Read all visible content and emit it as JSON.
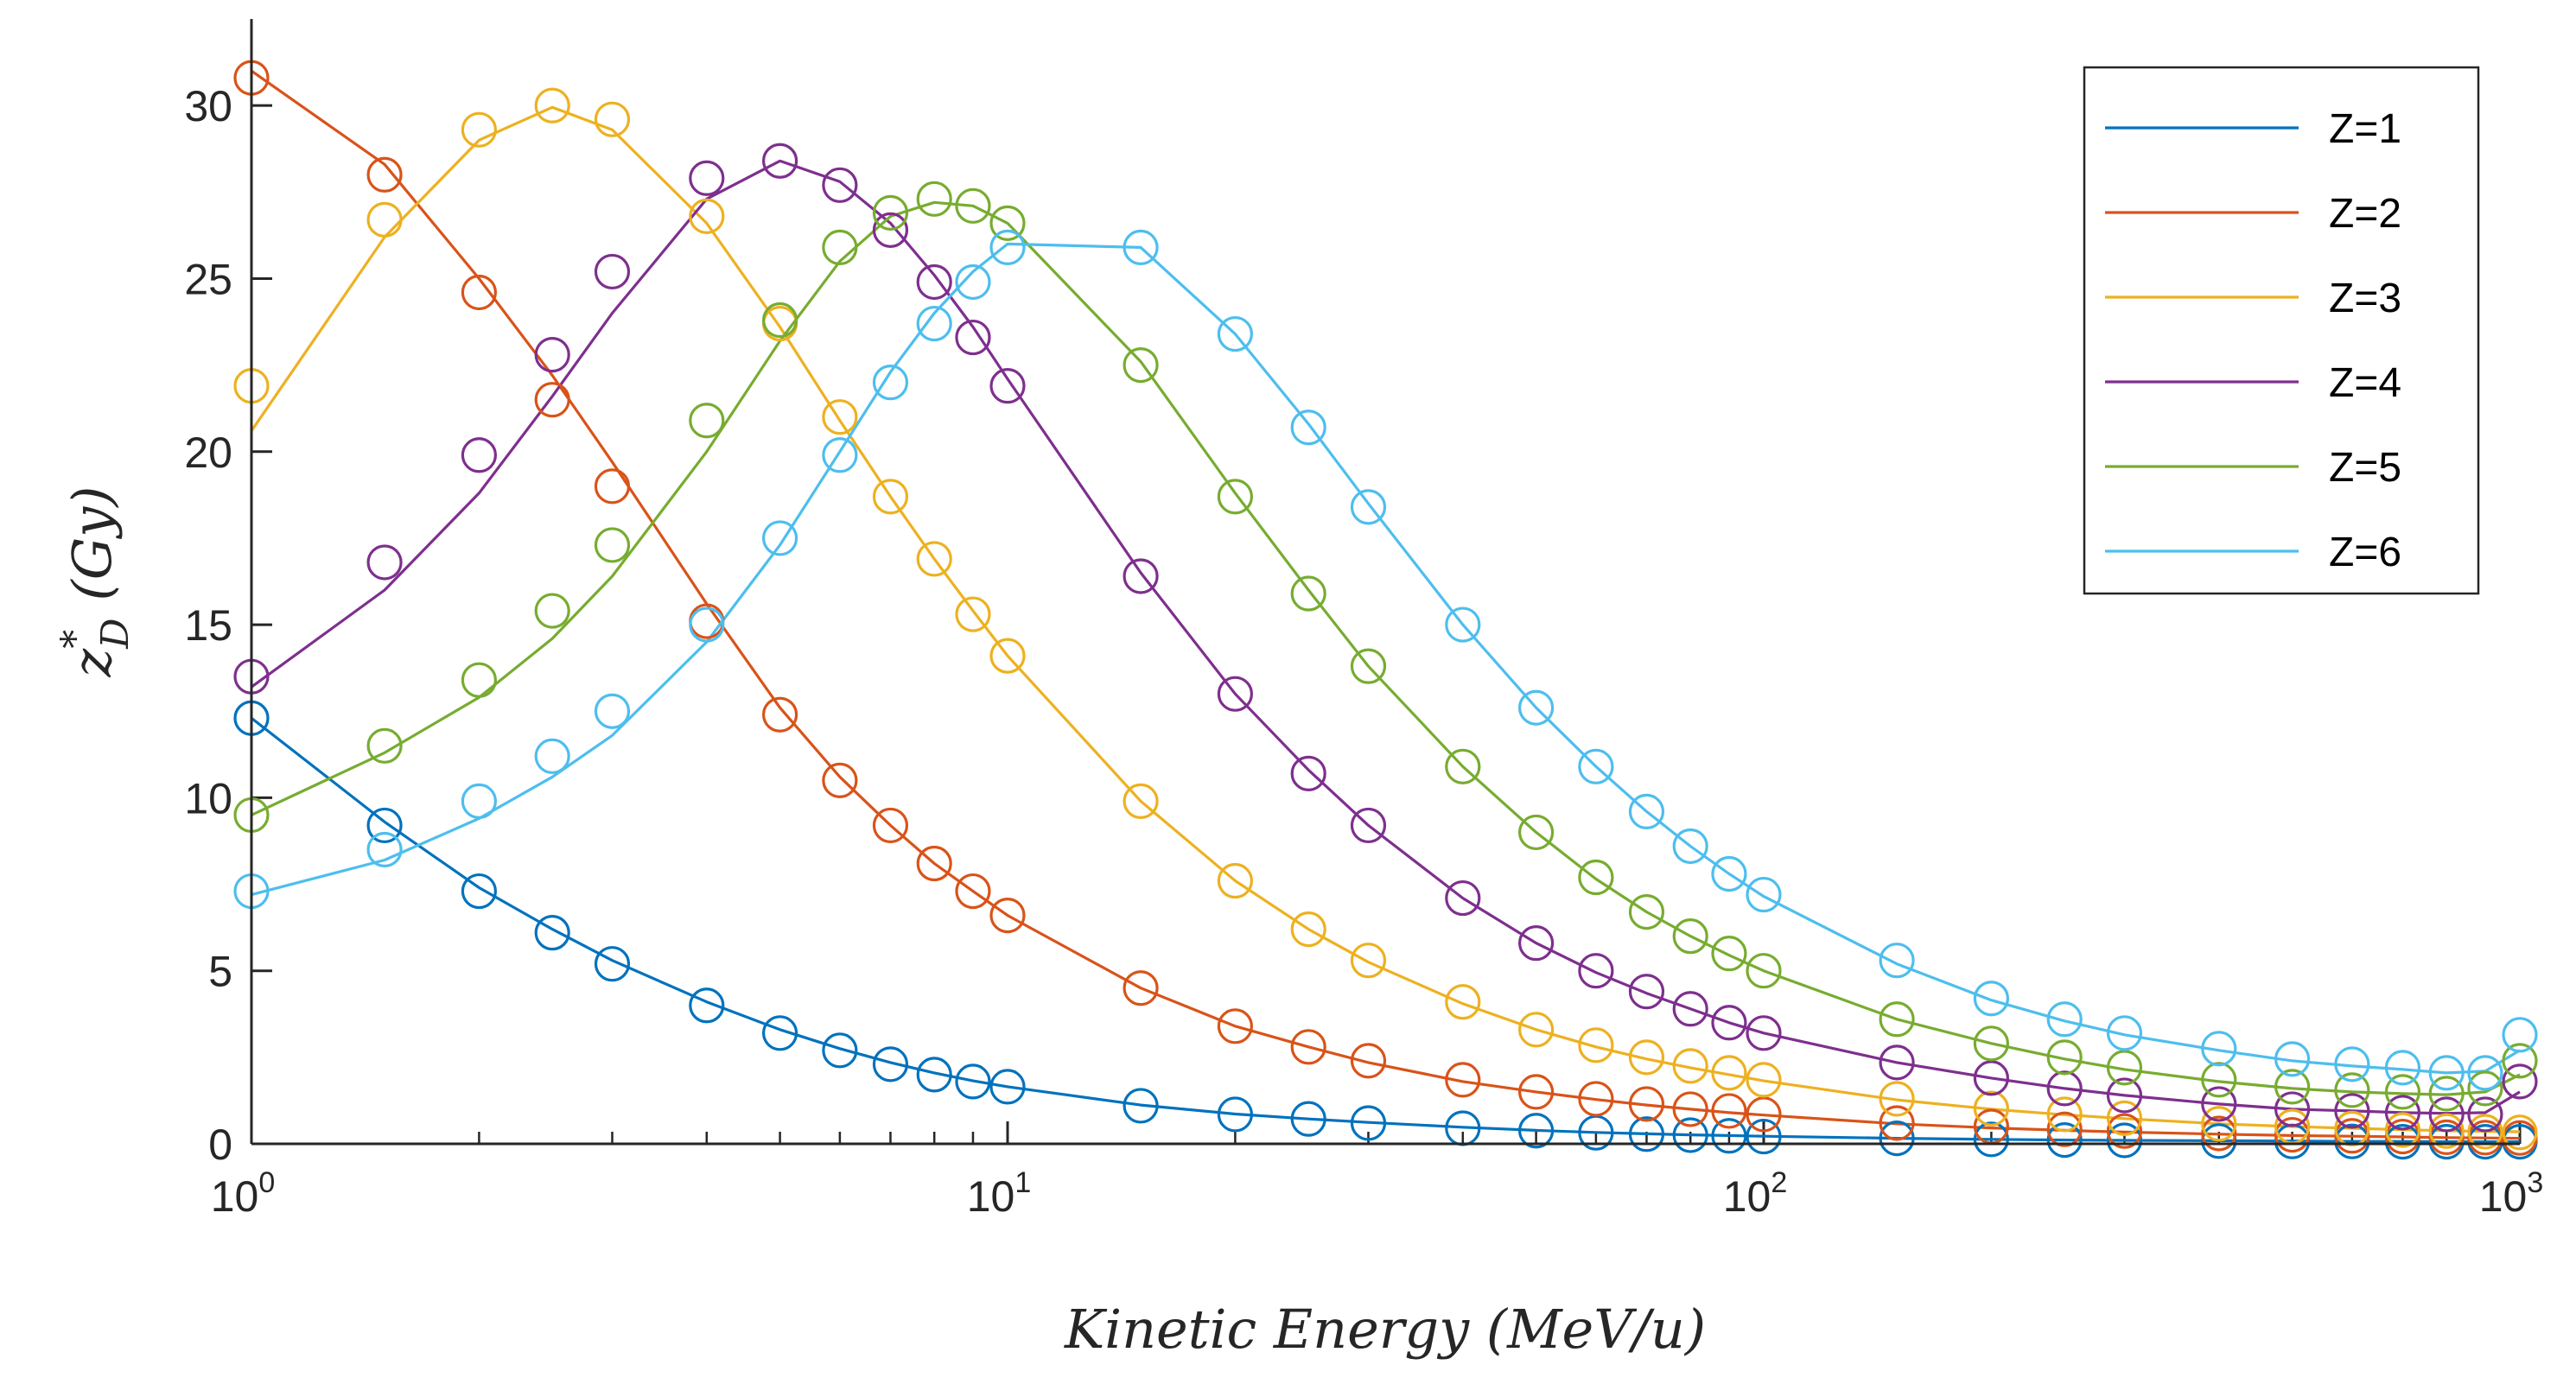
{
  "chart_data": {
    "type": "line",
    "title": "",
    "xlabel": "Kinetic Energy (MeV/u)",
    "xlabel_parts": {
      "name": "Kinetic Energy",
      "unit": "(MeV/u)"
    },
    "ylabel": "z*_D (Gy)",
    "ylabel_parts": {
      "sym": "z",
      "sup": "*",
      "sub": "D",
      "unit": "(Gy)"
    },
    "xscale": "log",
    "xlim": [
      1,
      1000
    ],
    "ylim": [
      0,
      32.5
    ],
    "x_ticks": [
      {
        "value": 1,
        "base": "10",
        "exp": "0"
      },
      {
        "value": 10,
        "base": "10",
        "exp": "1"
      },
      {
        "value": 100,
        "base": "10",
        "exp": "2"
      },
      {
        "value": 1000,
        "base": "10",
        "exp": "3"
      }
    ],
    "y_ticks": [
      {
        "value": 0,
        "label": "0"
      },
      {
        "value": 5,
        "label": "5"
      },
      {
        "value": 10,
        "label": "10"
      },
      {
        "value": 15,
        "label": "15"
      },
      {
        "value": 20,
        "label": "20"
      },
      {
        "value": 25,
        "label": "25"
      },
      {
        "value": 30,
        "label": "30"
      }
    ],
    "legend_position": "top-right",
    "x": [
      1,
      1.5,
      2,
      2.5,
      3,
      4,
      5,
      6,
      7,
      8,
      9,
      10,
      15,
      20,
      25,
      30,
      40,
      50,
      60,
      70,
      80,
      90,
      100,
      150,
      200,
      250,
      300,
      400,
      500,
      600,
      700,
      800,
      900,
      1000
    ],
    "series": [
      {
        "name": "Z=1",
        "color": "#0072BD",
        "values": [
          12.3,
          9.2,
          7.3,
          6.1,
          5.2,
          4.0,
          3.2,
          2.7,
          2.3,
          2.0,
          1.8,
          1.65,
          1.1,
          0.85,
          0.72,
          0.6,
          0.45,
          0.38,
          0.32,
          0.28,
          0.25,
          0.23,
          0.21,
          0.16,
          0.13,
          0.11,
          0.1,
          0.08,
          0.07,
          0.07,
          0.06,
          0.06,
          0.06,
          0.06
        ],
        "curve": [
          12.3,
          9.3,
          7.4,
          6.2,
          5.3,
          4.1,
          3.3,
          2.75,
          2.35,
          2.05,
          1.82,
          1.65,
          1.12,
          0.86,
          0.72,
          0.62,
          0.48,
          0.39,
          0.33,
          0.29,
          0.26,
          0.24,
          0.22,
          0.16,
          0.13,
          0.11,
          0.1,
          0.09,
          0.08,
          0.07,
          0.07,
          0.06,
          0.06,
          0.06
        ]
      },
      {
        "name": "Z=2",
        "color": "#D95319",
        "values": [
          30.8,
          28.0,
          24.6,
          21.5,
          19.0,
          15.1,
          12.4,
          10.5,
          9.2,
          8.1,
          7.3,
          6.6,
          4.5,
          3.4,
          2.8,
          2.4,
          1.85,
          1.5,
          1.3,
          1.15,
          1.0,
          0.95,
          0.85,
          0.6,
          0.5,
          0.42,
          0.37,
          0.3,
          0.26,
          0.23,
          0.21,
          0.19,
          0.18,
          0.17
        ],
        "curve": [
          31.0,
          28.3,
          25.0,
          22.2,
          19.7,
          15.6,
          12.6,
          10.6,
          9.2,
          8.1,
          7.3,
          6.6,
          4.5,
          3.4,
          2.8,
          2.35,
          1.8,
          1.5,
          1.28,
          1.12,
          1.0,
          0.9,
          0.83,
          0.58,
          0.46,
          0.39,
          0.34,
          0.28,
          0.24,
          0.22,
          0.2,
          0.18,
          0.17,
          0.16
        ]
      },
      {
        "name": "Z=3",
        "color": "#EDB120",
        "values": [
          21.9,
          26.7,
          29.3,
          30.0,
          29.6,
          26.8,
          23.7,
          21.0,
          18.7,
          16.9,
          15.3,
          14.1,
          9.9,
          7.6,
          6.2,
          5.3,
          4.1,
          3.3,
          2.85,
          2.5,
          2.25,
          2.05,
          1.85,
          1.3,
          1.02,
          0.85,
          0.74,
          0.58,
          0.5,
          0.44,
          0.4,
          0.37,
          0.35,
          0.33
        ],
        "curve": [
          20.6,
          26.2,
          29.0,
          29.95,
          29.3,
          26.6,
          23.6,
          20.9,
          18.7,
          16.9,
          15.4,
          14.1,
          9.9,
          7.6,
          6.2,
          5.25,
          4.05,
          3.3,
          2.8,
          2.45,
          2.2,
          2.0,
          1.82,
          1.27,
          1.0,
          0.84,
          0.73,
          0.58,
          0.5,
          0.45,
          0.41,
          0.38,
          0.36,
          0.35
        ]
      },
      {
        "name": "Z=4",
        "color": "#7E2F8E",
        "values": [
          13.5,
          16.8,
          19.9,
          22.8,
          25.2,
          27.9,
          28.4,
          27.7,
          26.4,
          24.9,
          23.3,
          21.9,
          16.4,
          13.0,
          10.7,
          9.2,
          7.1,
          5.8,
          5.0,
          4.4,
          3.9,
          3.5,
          3.2,
          2.35,
          1.9,
          1.6,
          1.4,
          1.15,
          1.0,
          0.95,
          0.9,
          0.85,
          0.85,
          1.8
        ],
        "curve": [
          13.2,
          16.0,
          18.8,
          21.6,
          24.0,
          27.3,
          28.4,
          27.8,
          26.6,
          25.1,
          23.6,
          22.1,
          16.5,
          13.0,
          10.8,
          9.2,
          7.1,
          5.8,
          4.95,
          4.35,
          3.9,
          3.5,
          3.2,
          2.35,
          1.9,
          1.6,
          1.4,
          1.15,
          1.0,
          0.95,
          0.9,
          0.88,
          0.9,
          1.5
        ]
      },
      {
        "name": "Z=5",
        "color": "#77AC30",
        "values": [
          9.5,
          11.5,
          13.4,
          15.4,
          17.3,
          20.9,
          23.8,
          25.9,
          26.9,
          27.3,
          27.1,
          26.6,
          22.5,
          18.7,
          15.9,
          13.8,
          10.9,
          9.0,
          7.7,
          6.7,
          6.0,
          5.5,
          5.0,
          3.6,
          2.9,
          2.5,
          2.2,
          1.85,
          1.65,
          1.55,
          1.5,
          1.45,
          1.6,
          2.4
        ],
        "curve": [
          9.5,
          11.3,
          12.9,
          14.6,
          16.4,
          20.0,
          23.2,
          25.5,
          26.8,
          27.2,
          27.1,
          26.6,
          22.6,
          18.8,
          16.0,
          13.8,
          10.9,
          9.0,
          7.65,
          6.7,
          6.0,
          5.45,
          5.0,
          3.6,
          2.9,
          2.45,
          2.15,
          1.8,
          1.6,
          1.5,
          1.45,
          1.42,
          1.5,
          2.0
        ]
      },
      {
        "name": "Z=6",
        "color": "#4DBEEE",
        "values": [
          7.3,
          8.5,
          9.9,
          11.2,
          12.5,
          15.0,
          17.5,
          19.9,
          22.0,
          23.7,
          24.9,
          25.9,
          25.9,
          23.4,
          20.7,
          18.4,
          15.0,
          12.6,
          10.9,
          9.6,
          8.6,
          7.8,
          7.2,
          5.3,
          4.2,
          3.6,
          3.2,
          2.75,
          2.45,
          2.3,
          2.2,
          2.05,
          2.05,
          3.15
        ],
        "curve": [
          7.2,
          8.2,
          9.4,
          10.6,
          11.8,
          14.5,
          17.3,
          20.0,
          22.3,
          24.0,
          25.2,
          26.0,
          25.9,
          23.4,
          20.8,
          18.5,
          15.0,
          12.6,
          10.9,
          9.6,
          8.6,
          7.8,
          7.15,
          5.2,
          4.15,
          3.55,
          3.15,
          2.7,
          2.4,
          2.25,
          2.15,
          2.05,
          2.1,
          2.7
        ]
      }
    ]
  }
}
